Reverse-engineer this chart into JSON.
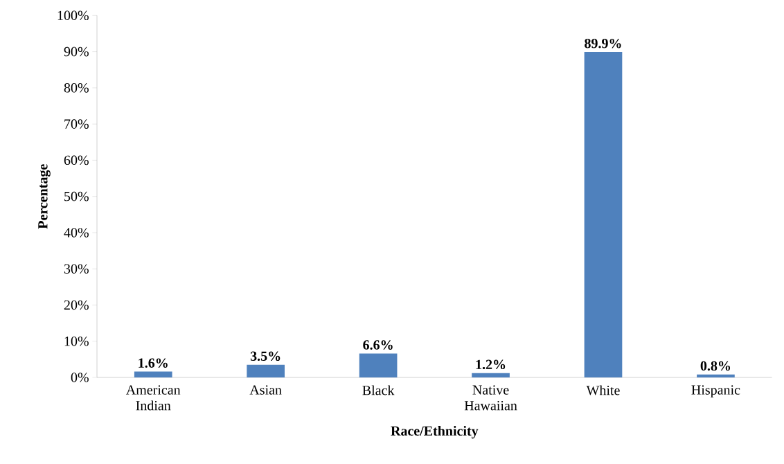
{
  "chart_data": {
    "type": "bar",
    "xlabel": "Race/Ethnicity",
    "ylabel": "Percentage",
    "categories": [
      "American Indian",
      "Asian",
      "Black",
      "Native Hawaiian",
      "White",
      "Hispanic"
    ],
    "values": [
      1.6,
      3.5,
      6.6,
      1.2,
      89.9,
      0.8
    ],
    "value_labels": [
      "1.6%",
      "3.5%",
      "6.6%",
      "1.2%",
      "89.9%",
      "0.8%"
    ],
    "color": "#4f81bd",
    "ylim": [
      0,
      100
    ],
    "yticks": [
      {
        "value": 0,
        "label": "0%"
      },
      {
        "value": 10,
        "label": "10%"
      },
      {
        "value": 20,
        "label": "20%"
      },
      {
        "value": 30,
        "label": "30%"
      },
      {
        "value": 40,
        "label": "40%"
      },
      {
        "value": 50,
        "label": "50%"
      },
      {
        "value": 60,
        "label": "60%"
      },
      {
        "value": 70,
        "label": "70%"
      },
      {
        "value": 80,
        "label": "80%"
      },
      {
        "value": 90,
        "label": "90%"
      },
      {
        "value": 100,
        "label": "100%"
      }
    ]
  }
}
